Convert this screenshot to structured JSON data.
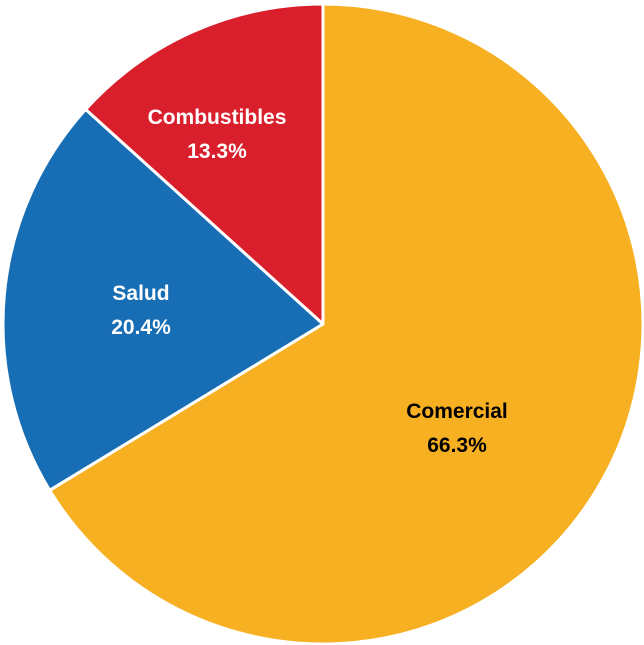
{
  "chart_data": {
    "type": "pie",
    "title": "",
    "slices": [
      {
        "label": "Comercial",
        "value": 66.3,
        "value_label": "66.3%",
        "color": "#F7B022",
        "text_color": "#000000"
      },
      {
        "label": "Salud",
        "value": 20.4,
        "value_label": "20.4%",
        "color": "#176EB5",
        "text_color": "#FFFFFF"
      },
      {
        "label": "Combustibles",
        "value": 13.3,
        "value_label": "13.3%",
        "color": "#DA1F2C",
        "text_color": "#FFFFFF"
      }
    ],
    "start_angle_deg": 0,
    "direction": "clockwise",
    "legend": "none"
  }
}
